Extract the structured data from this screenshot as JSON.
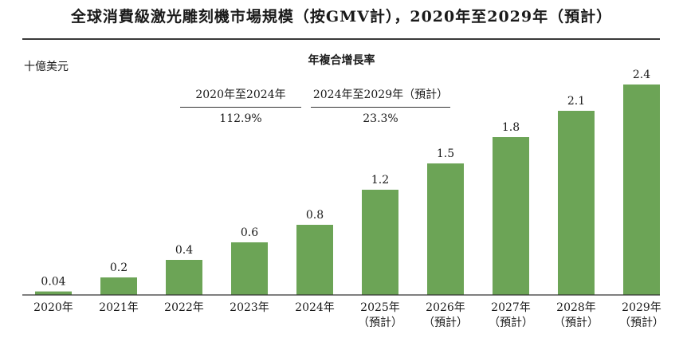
{
  "title": "全球消費級激光雕刻機市場規模（按GMV計），2020年至2029年（預計）",
  "unit_label": "十億美元",
  "cagr": {
    "title": "年複合增長率",
    "periods": [
      {
        "label": "2020年至2024年",
        "value": "112.9%"
      },
      {
        "label": "2024年至2029年（預計）",
        "value": "23.3%"
      }
    ]
  },
  "chart_data": {
    "type": "bar",
    "categories": [
      "2020年",
      "2021年",
      "2022年",
      "2023年",
      "2024年",
      "2025年\n（預計）",
      "2026年\n（預計）",
      "2027年\n（預計）",
      "2028年\n（預計）",
      "2029年\n（預計）"
    ],
    "values": [
      0.04,
      0.2,
      0.4,
      0.6,
      0.8,
      1.2,
      1.5,
      1.8,
      2.1,
      2.4
    ],
    "value_labels": [
      "0.04",
      "0.2",
      "0.4",
      "0.6",
      "0.8",
      "1.2",
      "1.5",
      "1.8",
      "2.1",
      "2.4"
    ],
    "ylabel": "十億美元",
    "ylim": [
      0,
      2.4
    ],
    "grid": false,
    "bar_color": "#6ca456"
  }
}
